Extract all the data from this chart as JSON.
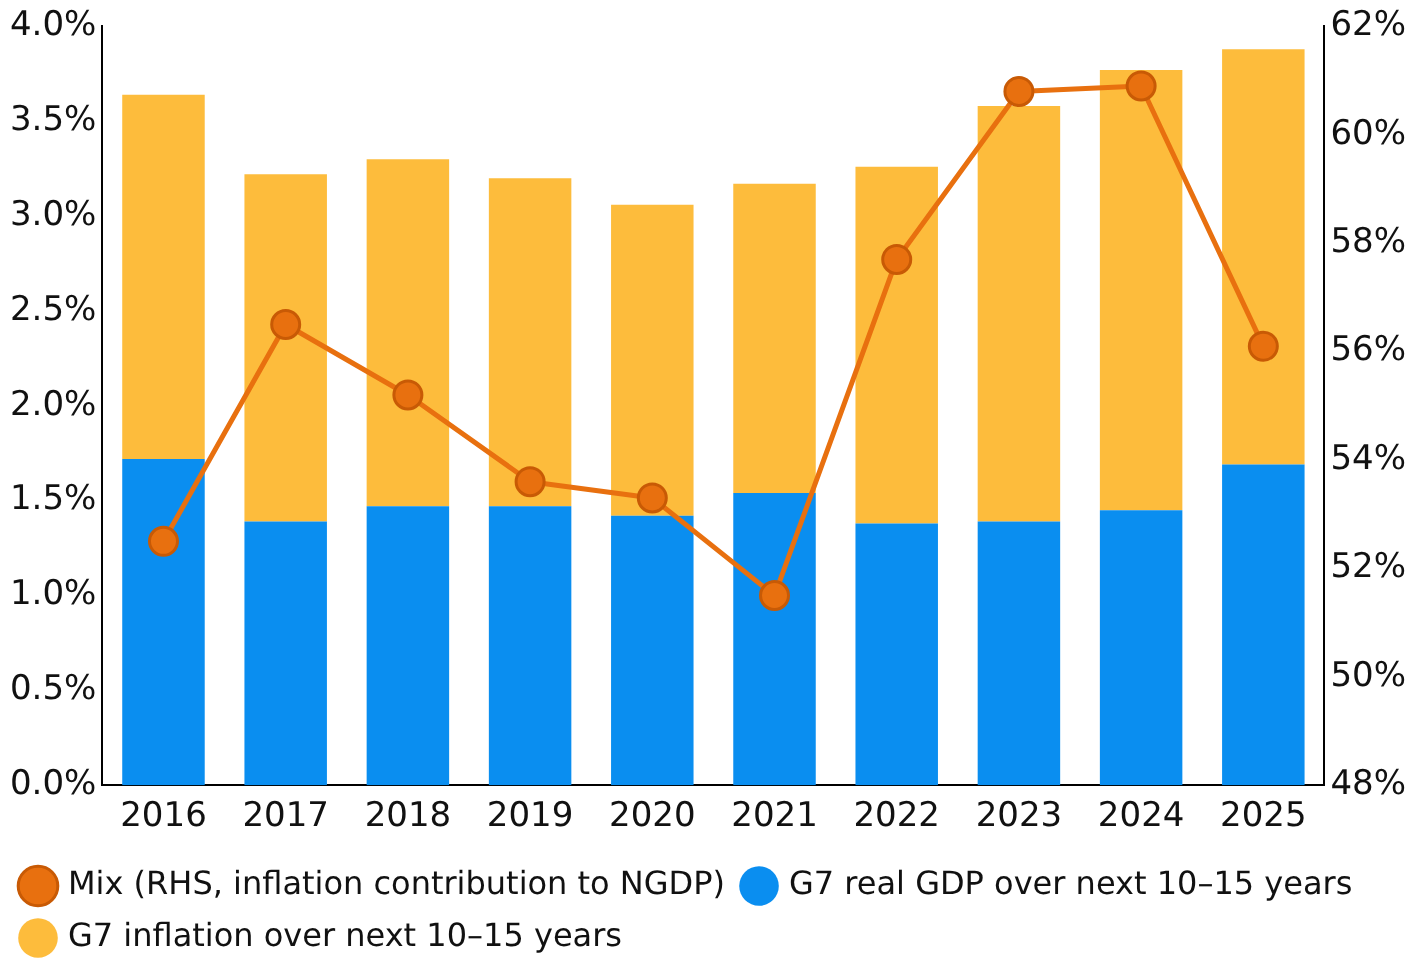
{
  "chart_data": {
    "type": "bar",
    "stacked": true,
    "categories": [
      "2016",
      "2017",
      "2018",
      "2019",
      "2020",
      "2021",
      "2022",
      "2023",
      "2024",
      "2025"
    ],
    "series": [
      {
        "name": "G7 real GDP over next 10–15 years",
        "color": "#0a8ef0",
        "values": [
          1.72,
          1.39,
          1.47,
          1.47,
          1.42,
          1.54,
          1.38,
          1.39,
          1.45,
          1.69
        ]
      },
      {
        "name": "G7 inflation over next 10–15 years",
        "color": "#fdbc3c",
        "values": [
          1.92,
          1.83,
          1.83,
          1.73,
          1.64,
          1.63,
          1.88,
          2.19,
          2.32,
          2.19
        ]
      },
      {
        "name": "Mix (RHS, inflation contribution to NGDP)",
        "type": "line",
        "axis": "y2",
        "color": "#e8700f",
        "marker": "circle",
        "values": [
          52.5,
          56.5,
          55.2,
          53.6,
          53.3,
          51.5,
          57.7,
          60.8,
          60.9,
          56.1
        ]
      }
    ],
    "ylim": [
      0,
      4
    ],
    "yticks": [
      {
        "value": 0,
        "label": "0.0%"
      },
      {
        "value": 0.5,
        "label": "0.5%"
      },
      {
        "value": 1,
        "label": "1.0%"
      },
      {
        "value": 1.5,
        "label": "1.5%"
      },
      {
        "value": 2,
        "label": "2.0%"
      },
      {
        "value": 2.5,
        "label": "2.5%"
      },
      {
        "value": 3,
        "label": "3.0%"
      },
      {
        "value": 3.5,
        "label": "3.5%"
      },
      {
        "value": 4,
        "label": "4.0%"
      }
    ],
    "y2lim": [
      48,
      62
    ],
    "y2ticks": [
      {
        "value": 48,
        "label": "48%"
      },
      {
        "value": 50,
        "label": "50%"
      },
      {
        "value": 52,
        "label": "52%"
      },
      {
        "value": 54,
        "label": "54%"
      },
      {
        "value": 56,
        "label": "56%"
      },
      {
        "value": 58,
        "label": "58%"
      },
      {
        "value": 60,
        "label": "60%"
      },
      {
        "value": 62,
        "label": "62%"
      }
    ],
    "grid": false,
    "legend": "bottom"
  }
}
